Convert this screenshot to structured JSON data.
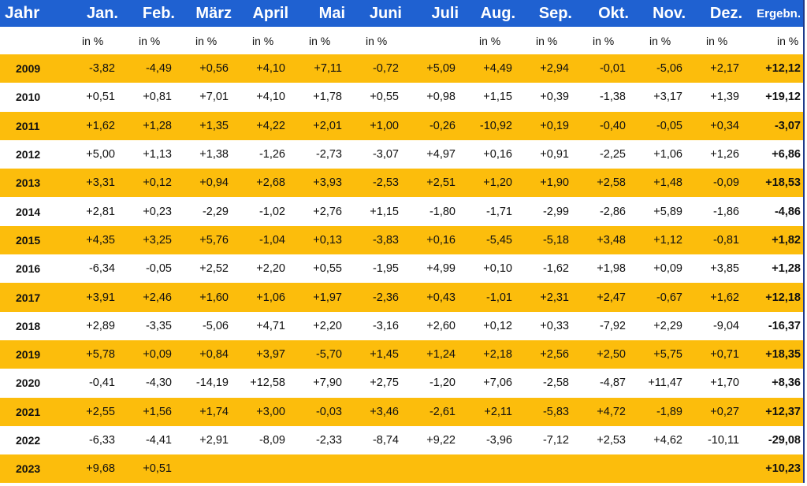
{
  "chart_data": {
    "type": "table",
    "columns": [
      "Jahr",
      "Jan.",
      "Feb.",
      "März",
      "April",
      "Mai",
      "Juni",
      "Juli",
      "Aug.",
      "Sep.",
      "Okt.",
      "Nov.",
      "Dez.",
      "Ergebn."
    ],
    "units": [
      "",
      "in %",
      "in %",
      "in %",
      "in %",
      "in %",
      "in %",
      "",
      "in %",
      "in %",
      "in %",
      "in %",
      "in %",
      "in %"
    ],
    "rows": [
      [
        "2009",
        "-3,82",
        "-4,49",
        "+0,56",
        "+4,10",
        "+7,11",
        "-0,72",
        "+5,09",
        "+4,49",
        "+2,94",
        "-0,01",
        "-5,06",
        "+2,17",
        "+12,12"
      ],
      [
        "2010",
        "+0,51",
        "+0,81",
        "+7,01",
        "+4,10",
        "+1,78",
        "+0,55",
        "+0,98",
        "+1,15",
        "+0,39",
        "-1,38",
        "+3,17",
        "+1,39",
        "+19,12"
      ],
      [
        "2011",
        "+1,62",
        "+1,28",
        "+1,35",
        "+4,22",
        "+2,01",
        "+1,00",
        "-0,26",
        "-10,92",
        "+0,19",
        "-0,40",
        "-0,05",
        "+0,34",
        "-3,07"
      ],
      [
        "2012",
        "+5,00",
        "+1,13",
        "+1,38",
        "-1,26",
        "-2,73",
        "-3,07",
        "+4,97",
        "+0,16",
        "+0,91",
        "-2,25",
        "+1,06",
        "+1,26",
        "+6,86"
      ],
      [
        "2013",
        "+3,31",
        "+0,12",
        "+0,94",
        "+2,68",
        "+3,93",
        "-2,53",
        "+2,51",
        "+1,20",
        "+1,90",
        "+2,58",
        "+1,48",
        "-0,09",
        "+18,53"
      ],
      [
        "2014",
        "+2,81",
        "+0,23",
        "-2,29",
        "-1,02",
        "+2,76",
        "+1,15",
        "-1,80",
        "-1,71",
        "-2,99",
        "-2,86",
        "+5,89",
        "-1,86",
        "-4,86"
      ],
      [
        "2015",
        "+4,35",
        "+3,25",
        "+5,76",
        "-1,04",
        "+0,13",
        "-3,83",
        "+0,16",
        "-5,45",
        "-5,18",
        "+3,48",
        "+1,12",
        "-0,81",
        "+1,82"
      ],
      [
        "2016",
        "-6,34",
        "-0,05",
        "+2,52",
        "+2,20",
        "+0,55",
        "-1,95",
        "+4,99",
        "+0,10",
        "-1,62",
        "+1,98",
        "+0,09",
        "+3,85",
        "+1,28"
      ],
      [
        "2017",
        "+3,91",
        "+2,46",
        "+1,60",
        "+1,06",
        "+1,97",
        "-2,36",
        "+0,43",
        "-1,01",
        "+2,31",
        "+2,47",
        "-0,67",
        "+1,62",
        "+12,18"
      ],
      [
        "2018",
        "+2,89",
        "-3,35",
        "-5,06",
        "+4,71",
        "+2,20",
        "-3,16",
        "+2,60",
        "+0,12",
        "+0,33",
        "-7,92",
        "+2,29",
        "-9,04",
        "-16,37"
      ],
      [
        "2019",
        "+5,78",
        "+0,09",
        "+0,84",
        "+3,97",
        "-5,70",
        "+1,45",
        "+1,24",
        "+2,18",
        "+2,56",
        "+2,50",
        "+5,75",
        "+0,71",
        "+18,35"
      ],
      [
        "2020",
        "-0,41",
        "-4,30",
        "-14,19",
        "+12,58",
        "+7,90",
        "+2,75",
        "-1,20",
        "+7,06",
        "-2,58",
        "-4,87",
        "+11,47",
        "+1,70",
        "+8,36"
      ],
      [
        "2021",
        "+2,55",
        "+1,56",
        "+1,74",
        "+3,00",
        "-0,03",
        "+3,46",
        "-2,61",
        "+2,11",
        "-5,83",
        "+4,72",
        "-1,89",
        "+0,27",
        "+12,37"
      ],
      [
        "2022",
        "-6,33",
        "-4,41",
        "+2,91",
        "-8,09",
        "-2,33",
        "-8,74",
        "+9,22",
        "-3,96",
        "-7,12",
        "+2,53",
        "+4,62",
        "-10,11",
        "-29,08"
      ],
      [
        "2023",
        "+9,68",
        "+0,51",
        "",
        "",
        "",
        "",
        "",
        "",
        "",
        "",
        "",
        "",
        "+10,23"
      ]
    ]
  },
  "colors": {
    "header_bg": "#1f61d1",
    "header_text": "#ffffff",
    "alt_row_bg": "#fcbd0c",
    "row_bg": "#ffffff"
  }
}
